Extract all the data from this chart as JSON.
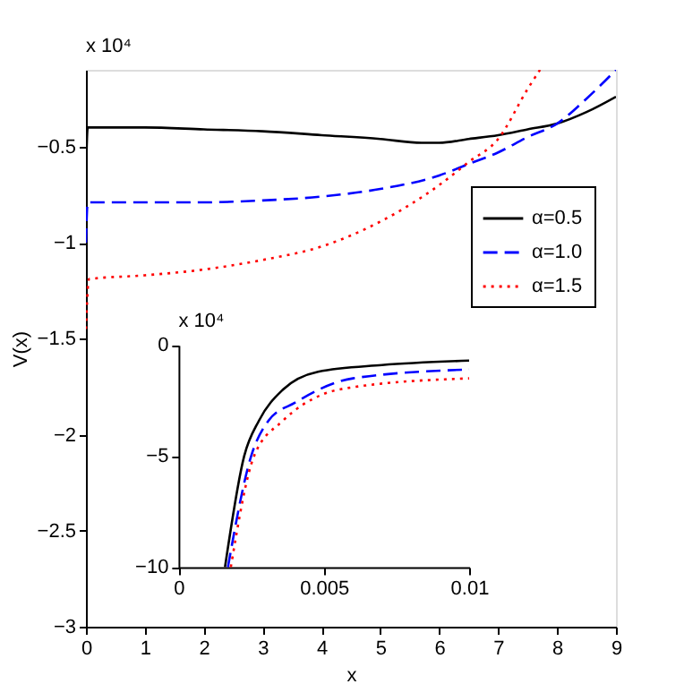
{
  "chart_data": [
    {
      "type": "line",
      "xlabel": "x",
      "ylabel": "V(x)",
      "xlim": [
        0,
        9
      ],
      "xticks": [
        0,
        1,
        2,
        3,
        4,
        5,
        6,
        7,
        8,
        9
      ],
      "ylim": [
        -3,
        -0.1
      ],
      "yticks": [
        -3,
        -2.5,
        -2,
        -1.5,
        -1,
        -0.5
      ],
      "grid": false,
      "legend": "right",
      "annotations": [
        "x 10⁴"
      ],
      "series": [
        {
          "name": "α=0.5",
          "color": "#000000",
          "line_style": "solid",
          "x": [
            0,
            0.03,
            1,
            2,
            3,
            4,
            5,
            5.7,
            6,
            6.5,
            7,
            7.5,
            8,
            8.5,
            9
          ],
          "values": [
            -0.65,
            -0.4,
            -0.4,
            -0.41,
            -0.42,
            -0.44,
            -0.46,
            -0.48,
            -0.48,
            -0.46,
            -0.44,
            -0.41,
            -0.38,
            -0.32,
            -0.24
          ]
        },
        {
          "name": "α=1.0",
          "color": "#0000ff",
          "line_style": "dashed",
          "x": [
            0,
            0.03,
            1,
            2,
            3,
            4,
            5,
            6,
            6.5,
            7,
            7.5,
            8,
            8.5,
            9
          ],
          "values": [
            -1.0,
            -0.79,
            -0.79,
            -0.79,
            -0.78,
            -0.76,
            -0.72,
            -0.65,
            -0.59,
            -0.53,
            -0.45,
            -0.38,
            -0.25,
            -0.1
          ]
        },
        {
          "name": "α=1.5",
          "color": "#ff0000",
          "line_style": "dotted",
          "x": [
            0,
            0.05,
            1,
            2,
            3,
            4,
            5,
            6,
            6.5,
            7,
            7.5,
            7.71
          ],
          "values": [
            -1.45,
            -1.19,
            -1.17,
            -1.14,
            -1.09,
            -1.02,
            -0.89,
            -0.7,
            -0.58,
            -0.46,
            -0.2,
            -0.1
          ]
        }
      ]
    },
    {
      "type": "line",
      "xlim": [
        0,
        0.01
      ],
      "xticks": [
        0,
        0.005,
        0.01
      ],
      "ylim": [
        -10,
        0
      ],
      "yticks": [
        -10,
        -5,
        0
      ],
      "grid": false,
      "annotations": [
        "x 10⁴"
      ],
      "series": [
        {
          "color": "#000000",
          "line_style": "solid",
          "x": [
            0.0016,
            0.00226,
            0.00277,
            0.0036,
            0.0048,
            0.007,
            0.01
          ],
          "values": [
            -10,
            -5,
            -3.4,
            -2.0,
            -1.2,
            -0.9,
            -0.7
          ]
        },
        {
          "color": "#0000ff",
          "line_style": "dashed",
          "x": [
            0.0017,
            0.0025,
            0.0031,
            0.004,
            0.006,
            0.01
          ],
          "values": [
            -10,
            -5,
            -3.4,
            -2.6,
            -1.5,
            -1.1
          ]
        },
        {
          "color": "#ff0000",
          "line_style": "dotted",
          "x": [
            0.0018,
            0.0026,
            0.0036,
            0.005,
            0.006,
            0.01
          ],
          "values": [
            -10,
            -5,
            -3.4,
            -2.2,
            -1.9,
            -1.5
          ]
        }
      ]
    }
  ]
}
